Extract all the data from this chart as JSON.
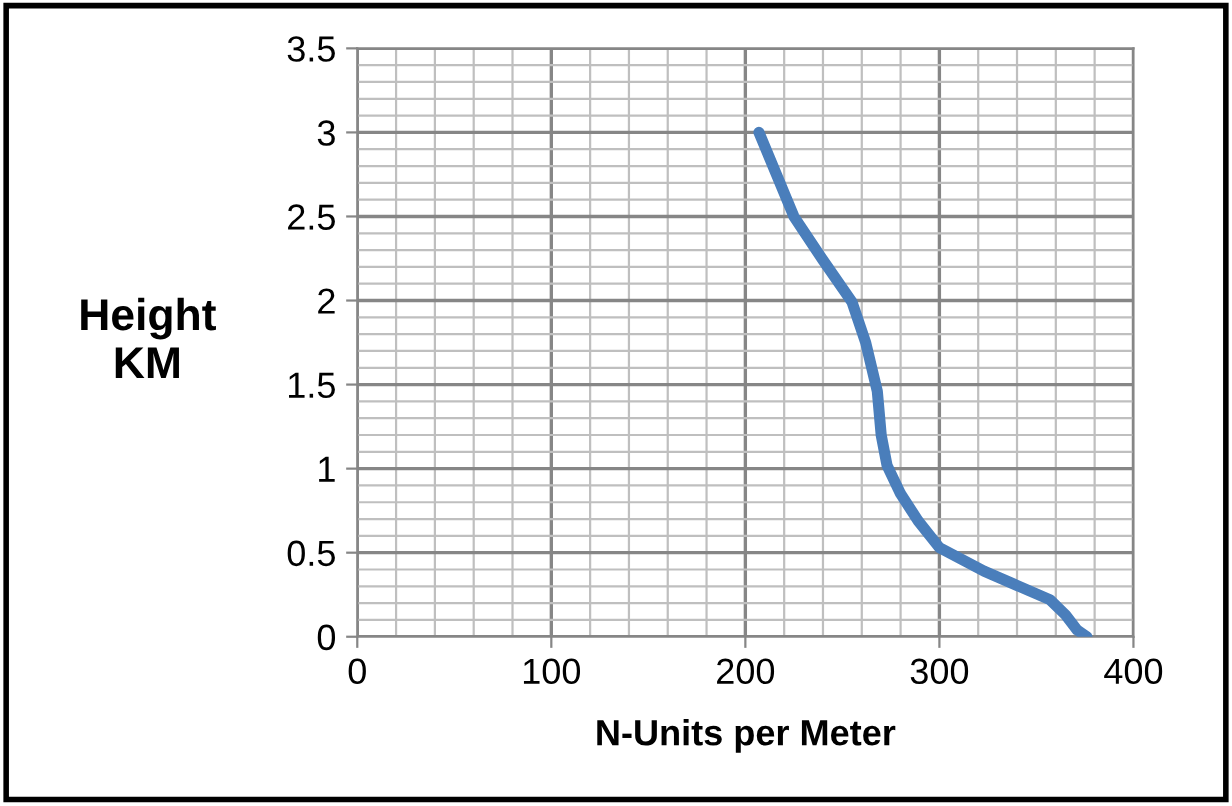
{
  "chart_data": {
    "type": "line",
    "xlabel": "N-Units per Meter",
    "ylabel": "Height\nKM",
    "series": [
      {
        "color": "#4a7ebb",
        "x": [
          207,
          216,
          225,
          240,
          255,
          262,
          268,
          270,
          273,
          280,
          289,
          300,
          323,
          357,
          365,
          371,
          376
        ],
        "values": [
          3,
          2.75,
          2.5,
          2.24,
          1.99,
          1.75,
          1.46,
          1.2,
          1.02,
          0.85,
          0.69,
          0.53,
          0.39,
          0.22,
          0.13,
          0.04,
          0
        ]
      }
    ],
    "xlim": [
      0,
      400
    ],
    "xticks": [
      0,
      100,
      200,
      300,
      400
    ],
    "ylim": [
      0,
      3.5
    ],
    "yticks": [
      0,
      0.5,
      1,
      1.5,
      2,
      2.5,
      3,
      3.5
    ],
    "grid": true,
    "marker": "none",
    "line_style": "solid"
  }
}
